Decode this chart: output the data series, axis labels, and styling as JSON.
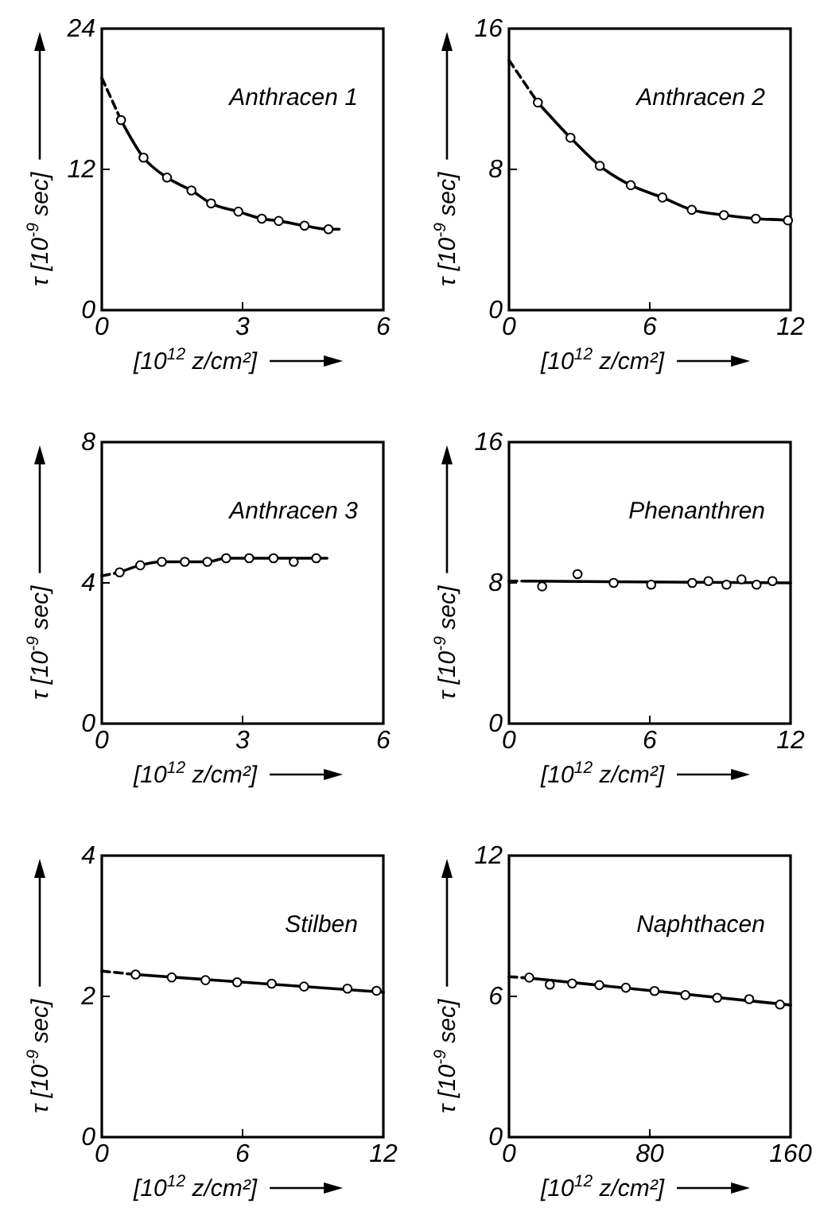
{
  "chart_data": [
    {
      "type": "scatter",
      "title": "Anthracen 1",
      "xlabel": "[10$^{12}$ z/cm²]",
      "ylabel": "τ [10$^{-9}$ sec]",
      "xlim": [
        0,
        6
      ],
      "ylim": [
        0,
        24
      ],
      "xticks": [
        0,
        3,
        6
      ],
      "yticks": [
        0,
        12,
        24
      ],
      "series": [
        {
          "type": "line",
          "line_style": "dashed",
          "color": "#000000",
          "x": [
            0,
            0.41
          ],
          "values": [
            19.8,
            16.2
          ]
        },
        {
          "type": "line",
          "line_style": "solid",
          "color": "#000000",
          "x": [
            0.41,
            0.89,
            1.39,
            1.91,
            2.33,
            2.91,
            3.41,
            3.77,
            4.32,
            4.83,
            5.06
          ],
          "values": [
            16.2,
            13.0,
            11.3,
            10.2,
            9.1,
            8.4,
            7.8,
            7.6,
            7.2,
            6.9,
            6.9
          ]
        },
        {
          "type": "scatter",
          "marker": "circle",
          "color": "#000000",
          "x": [
            0.41,
            0.89,
            1.39,
            1.91,
            2.33,
            2.91,
            3.41,
            3.77,
            4.32,
            4.83
          ],
          "values": [
            16.2,
            13.0,
            11.3,
            10.2,
            9.1,
            8.4,
            7.8,
            7.6,
            7.2,
            6.9
          ]
        }
      ]
    },
    {
      "type": "scatter",
      "title": "Anthracen 2",
      "xlabel": "[10$^{12}$ z/cm²]",
      "ylabel": "τ [10$^{-9}$ sec]",
      "xlim": [
        0,
        12
      ],
      "ylim": [
        0,
        16
      ],
      "xticks": [
        0,
        6,
        12
      ],
      "yticks": [
        0,
        8,
        16
      ],
      "series": [
        {
          "type": "line",
          "line_style": "dashed",
          "color": "#000000",
          "x": [
            0,
            1.23
          ],
          "values": [
            14.2,
            11.8
          ]
        },
        {
          "type": "line",
          "line_style": "solid",
          "color": "#000000",
          "x": [
            1.23,
            2.62,
            3.87,
            5.19,
            6.54,
            7.79,
            9.16,
            10.52,
            11.89,
            12
          ],
          "values": [
            11.8,
            9.8,
            8.2,
            7.1,
            6.4,
            5.7,
            5.4,
            5.2,
            5.1,
            5.0
          ]
        },
        {
          "type": "scatter",
          "marker": "circle",
          "color": "#000000",
          "x": [
            1.23,
            2.62,
            3.87,
            5.19,
            6.54,
            7.79,
            9.16,
            10.52,
            11.89
          ],
          "values": [
            11.8,
            9.8,
            8.2,
            7.1,
            6.4,
            5.7,
            5.4,
            5.2,
            5.1
          ]
        }
      ]
    },
    {
      "type": "scatter",
      "title": "Anthracen 3",
      "xlabel": "[10$^{12}$ z/cm²]",
      "ylabel": "τ [10$^{-9}$ sec]",
      "xlim": [
        0,
        6
      ],
      "ylim": [
        0,
        8
      ],
      "xticks": [
        0,
        3,
        6
      ],
      "yticks": [
        0,
        4,
        8
      ],
      "series": [
        {
          "type": "line",
          "line_style": "dashed",
          "color": "#000000",
          "x": [
            0,
            0.38
          ],
          "values": [
            4.2,
            4.3
          ]
        },
        {
          "type": "line",
          "line_style": "solid",
          "color": "#000000",
          "x": [
            0.38,
            0.82,
            1.28,
            1.77,
            2.25,
            2.65,
            3.14,
            3.66,
            4.09,
            4.57,
            4.8
          ],
          "values": [
            4.3,
            4.5,
            4.6,
            4.6,
            4.6,
            4.7,
            4.7,
            4.7,
            4.7,
            4.7,
            4.7
          ]
        },
        {
          "type": "scatter",
          "marker": "circle",
          "color": "#000000",
          "x": [
            0.38,
            0.82,
            1.28,
            1.77,
            2.25,
            2.65,
            3.14,
            3.66,
            4.09,
            4.57
          ],
          "values": [
            4.3,
            4.5,
            4.6,
            4.6,
            4.6,
            4.7,
            4.7,
            4.7,
            4.6,
            4.7
          ]
        }
      ]
    },
    {
      "type": "scatter",
      "title": "Phenanthren",
      "xlabel": "[10$^{12}$ z/cm²]",
      "ylabel": "τ [10$^{-9}$ sec]",
      "xlim": [
        0,
        12
      ],
      "ylim": [
        0,
        16
      ],
      "xticks": [
        0,
        6,
        12
      ],
      "yticks": [
        0,
        8,
        16
      ],
      "series": [
        {
          "type": "line",
          "line_style": "dashed",
          "color": "#000000",
          "x": [
            0,
            0.7
          ],
          "values": [
            8.1,
            8.1
          ]
        },
        {
          "type": "line",
          "line_style": "solid",
          "color": "#000000",
          "x": [
            0.7,
            12
          ],
          "values": [
            8.1,
            8.0
          ]
        },
        {
          "type": "scatter",
          "marker": "circle",
          "color": "#000000",
          "x": [
            1.41,
            2.92,
            4.46,
            6.06,
            7.81,
            8.5,
            9.27,
            9.91,
            10.55,
            11.23
          ],
          "values": [
            7.8,
            8.5,
            8.0,
            7.9,
            8.0,
            8.1,
            7.9,
            8.2,
            7.9,
            8.1
          ]
        }
      ]
    },
    {
      "type": "scatter",
      "title": "Stilben",
      "xlabel": "[10$^{12}$ z/cm²]",
      "ylabel": "τ [10$^{-9}$ sec]",
      "xlim": [
        0,
        12
      ],
      "ylim": [
        0,
        4
      ],
      "xticks": [
        0,
        6,
        12
      ],
      "yticks": [
        0,
        2,
        4
      ],
      "series": [
        {
          "type": "line",
          "line_style": "dashed",
          "color": "#000000",
          "x": [
            0,
            1.44
          ],
          "values": [
            2.36,
            2.31
          ]
        },
        {
          "type": "line",
          "line_style": "solid",
          "color": "#000000",
          "x": [
            1.44,
            12
          ],
          "values": [
            2.31,
            2.06
          ]
        },
        {
          "type": "scatter",
          "marker": "circle",
          "color": "#000000",
          "x": [
            1.44,
            2.98,
            4.42,
            5.77,
            7.24,
            8.62,
            10.47,
            11.71
          ],
          "values": [
            2.31,
            2.27,
            2.23,
            2.2,
            2.18,
            2.14,
            2.11,
            2.08
          ]
        }
      ]
    },
    {
      "type": "scatter",
      "title": "Naphthacen",
      "xlabel": "[10$^{12}$ z/cm²]",
      "ylabel": "τ [10$^{-9}$ sec]",
      "xlim": [
        0,
        160
      ],
      "ylim": [
        0,
        12
      ],
      "xticks": [
        0,
        80,
        160
      ],
      "yticks": [
        0,
        6,
        12
      ],
      "series": [
        {
          "type": "line",
          "line_style": "dashed",
          "color": "#000000",
          "x": [
            0,
            11.5
          ],
          "values": [
            6.84,
            6.78
          ]
        },
        {
          "type": "line",
          "line_style": "solid",
          "color": "#000000",
          "x": [
            11.5,
            160
          ],
          "values": [
            6.78,
            5.63
          ]
        },
        {
          "type": "scatter",
          "marker": "circle",
          "color": "#000000",
          "x": [
            11.5,
            23.2,
            35.9,
            51.3,
            66.4,
            82.7,
            100.2,
            118.3,
            136.5,
            154.0
          ],
          "values": [
            6.8,
            6.5,
            6.55,
            6.48,
            6.37,
            6.23,
            6.06,
            5.94,
            5.88,
            5.65
          ]
        }
      ]
    }
  ]
}
